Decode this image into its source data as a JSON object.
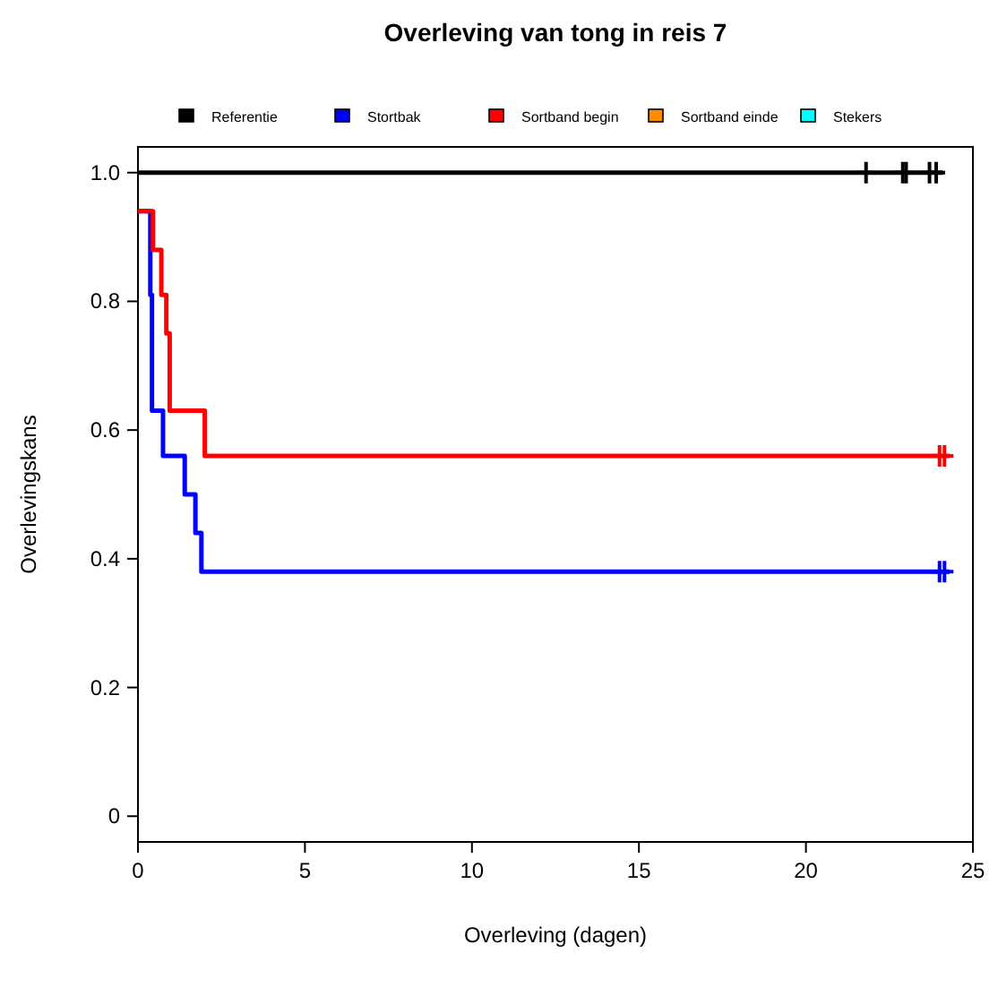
{
  "chart_data": {
    "type": "step",
    "title": "Overleving van tong in reis 7",
    "xlabel": "Overleving (dagen)",
    "ylabel": "Overlevingskans",
    "xlim": [
      0,
      25
    ],
    "xticks": [
      0,
      5,
      10,
      15,
      20,
      25
    ],
    "ylim": [
      -0.04,
      1.04
    ],
    "yticks": [
      0,
      {
        "value": 0.2,
        "label": "0.2"
      },
      {
        "value": 0.4,
        "label": "0.4"
      },
      {
        "value": 0.6,
        "label": "0.6"
      },
      {
        "value": 0.8,
        "label": "0.8"
      },
      {
        "value": 1,
        "label": "1.0"
      }
    ],
    "grid": false,
    "legend": "top",
    "line_style": "solid",
    "series": [
      {
        "name": "Referentie",
        "color": "#000000",
        "x": [
          0,
          24.1
        ],
        "values": [
          1,
          1
        ]
      },
      {
        "name": "Stortbak",
        "color": "#0000ff",
        "x": [
          0,
          0.37,
          0.42,
          0.75,
          1.4,
          1.72,
          1.9,
          24.3
        ],
        "values": [
          0.94,
          0.81,
          0.63,
          0.56,
          0.5,
          0.44,
          0.38,
          0.38
        ]
      },
      {
        "name": "Sortband begin",
        "color": "#ff0000",
        "x": [
          0,
          0.45,
          0.7,
          0.85,
          0.95,
          2.0,
          24.3
        ],
        "values": [
          0.94,
          0.88,
          0.81,
          0.75,
          0.63,
          0.56,
          0.56
        ]
      },
      {
        "name": "Sortband einde",
        "color": "#ff8c00"
      },
      {
        "name": "Stekers",
        "color": "#00ffff"
      },
      {
        "type": "scatter",
        "marker": "cross",
        "color": "#000000",
        "x": [
          21.8,
          22.9,
          23.0,
          23.7,
          23.9
        ],
        "values": [
          1,
          1,
          1,
          1,
          1
        ]
      },
      {
        "type": "scatter",
        "marker": "cross",
        "color": "#0000ff",
        "x": [
          24.0,
          24.15
        ],
        "values": [
          0.38,
          0.38
        ]
      },
      {
        "type": "scatter",
        "marker": "cross",
        "color": "#ff0000",
        "x": [
          24.0,
          24.15
        ],
        "values": [
          0.56,
          0.56
        ]
      }
    ]
  }
}
